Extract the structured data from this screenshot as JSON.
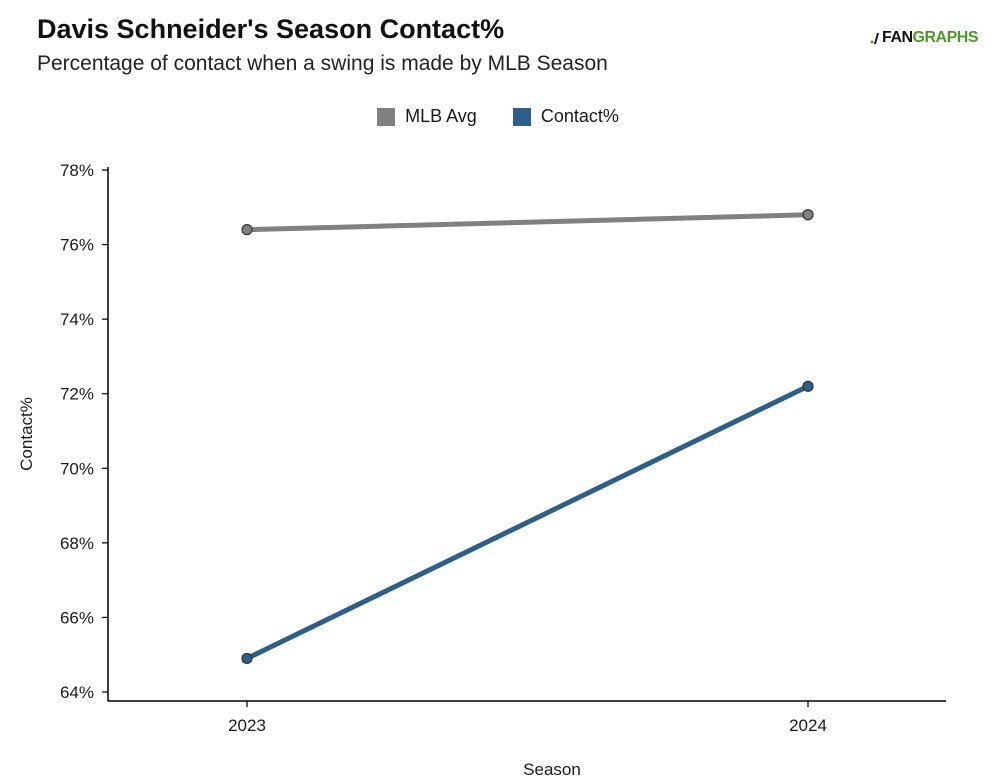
{
  "header": {
    "title": "Davis Schneider's Season Contact%",
    "subtitle": "Percentage of contact when a swing is made by MLB Season"
  },
  "logo": {
    "fan": "FAN",
    "graphs": "GRAPHS"
  },
  "chart_data": {
    "type": "line",
    "title": "Davis Schneider's Season Contact%",
    "subtitle": "Percentage of contact when a swing is made by MLB Season",
    "xlabel": "Season",
    "ylabel": "Contact%",
    "categories": [
      "2023",
      "2024"
    ],
    "ylim": [
      64,
      78
    ],
    "yticks": [
      64,
      66,
      68,
      70,
      72,
      74,
      76,
      78
    ],
    "ytick_labels": [
      "64%",
      "66%",
      "68%",
      "70%",
      "72%",
      "74%",
      "76%",
      "78%"
    ],
    "grid": false,
    "legend_position": "top-center",
    "series": [
      {
        "name": "MLB Avg",
        "color": "#808080",
        "values": [
          76.4,
          76.8
        ]
      },
      {
        "name": "Contact%",
        "color": "#2d5f8a",
        "values": [
          64.9,
          72.2
        ]
      }
    ]
  }
}
